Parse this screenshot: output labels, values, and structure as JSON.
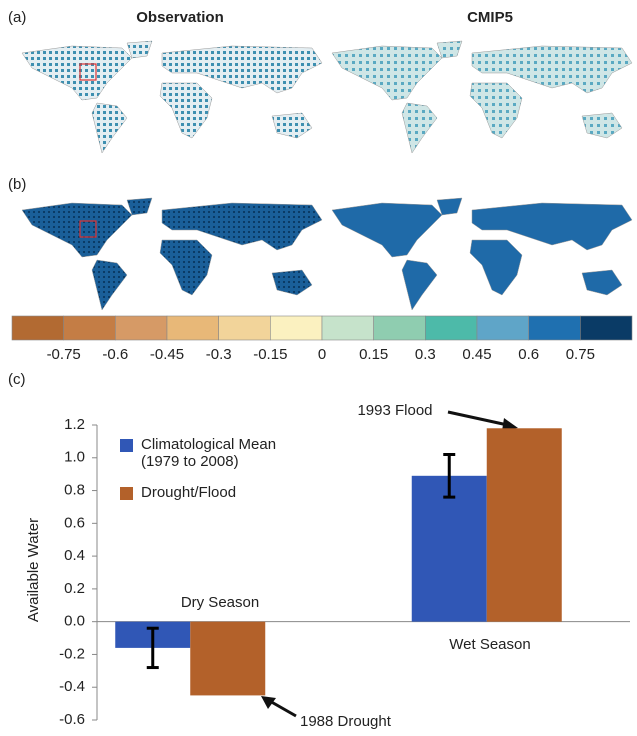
{
  "panel_labels": [
    "(a)",
    "(b)",
    "(c)"
  ],
  "map_titles": [
    "Observation",
    "CMIP5"
  ],
  "colorbar": {
    "colors": [
      "#b26a32",
      "#c47d45",
      "#d69a66",
      "#e8b878",
      "#f2d49a",
      "#fbf1c0",
      "#c6e3cb",
      "#8fcdb0",
      "#4dbaa9",
      "#5fa5c8",
      "#1f70b0",
      "#0a3b66"
    ],
    "ticks": [
      -0.75,
      -0.6,
      -0.45,
      -0.3,
      -0.15,
      0,
      0.15,
      0.3,
      0.45,
      0.6,
      0.75
    ]
  },
  "chart_data": {
    "type": "bar",
    "categories": [
      "Dry Season",
      "Wet Season"
    ],
    "series": [
      {
        "name": "Climatological Mean (1979 to 2008)",
        "color": "#3057b6",
        "values": [
          -0.16,
          0.89
        ],
        "errors": [
          0.12,
          0.13
        ]
      },
      {
        "name": "Drought/Flood",
        "color": "#b3612a",
        "values": [
          -0.45,
          1.18
        ]
      }
    ],
    "y_label": "Available Water",
    "ylim": [
      -0.6,
      1.2
    ],
    "yticks": [
      1.2,
      {
        "value": 1,
        "label": "1.0"
      },
      0.8,
      0.6,
      0.4,
      0.2,
      {
        "value": 0,
        "label": "0.0"
      },
      -0.2,
      -0.4,
      -0.6
    ],
    "annotations": [
      "1993 Flood",
      "1988 Drought"
    ]
  }
}
